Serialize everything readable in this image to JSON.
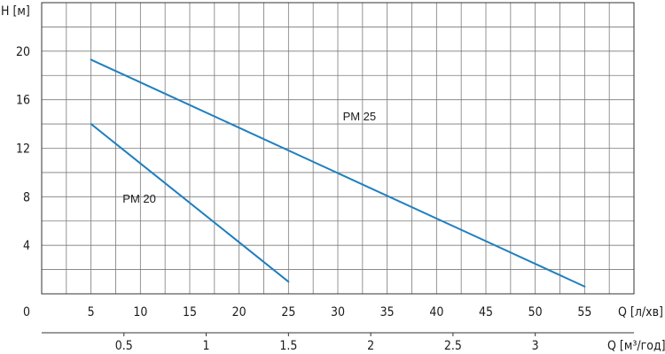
{
  "chart_data": {
    "type": "line",
    "ylabel": "H [м]",
    "xlabel": "Q [л/хв]",
    "x2label": "Q [м³/год]",
    "xlim": [
      0,
      60
    ],
    "ylim": [
      0,
      24
    ],
    "x_ticks": [
      "0",
      "5",
      "10",
      "15",
      "20",
      "25",
      "30",
      "35",
      "40",
      "45",
      "50",
      "55"
    ],
    "x_tick_values": [
      0,
      5,
      10,
      15,
      20,
      25,
      30,
      35,
      40,
      45,
      50,
      55
    ],
    "y_ticks": [
      "4",
      "8",
      "12",
      "16",
      "20"
    ],
    "y_tick_values": [
      4,
      8,
      12,
      16,
      20
    ],
    "x2_ticks": [
      "0.5",
      "1",
      "1.5",
      "2",
      "2.5",
      "3"
    ],
    "x2_tick_values": [
      0.5,
      1,
      1.5,
      2,
      2.5,
      3
    ],
    "grid": true,
    "line_color": "#1f7fbf",
    "series": [
      {
        "name": "PM 25",
        "x": [
          5,
          55
        ],
        "y": [
          19.3,
          0.6
        ]
      },
      {
        "name": "PM 20",
        "x": [
          5,
          25
        ],
        "y": [
          14.0,
          1.0
        ]
      }
    ]
  }
}
